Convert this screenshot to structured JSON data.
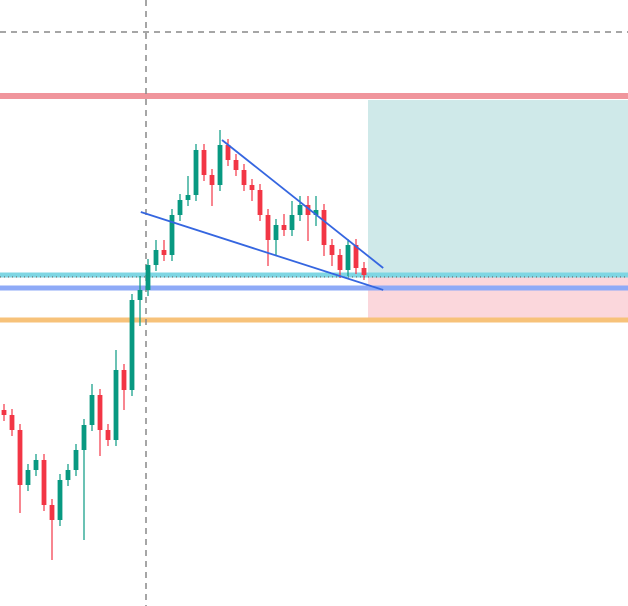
{
  "chart_data": {
    "type": "candlestick",
    "ylim": [
      0,
      606
    ],
    "xlim": [
      -0.5,
      78
    ],
    "up_color": "#089981",
    "down_color": "#f23645",
    "open": [
      196,
      191,
      176,
      121,
      136,
      146,
      101,
      86,
      126,
      136,
      156,
      181,
      211,
      176,
      166,
      236,
      216,
      306,
      316,
      341,
      356,
      351,
      391,
      406,
      411,
      456,
      431,
      421,
      461,
      446,
      436,
      421,
      416,
      391,
      366,
      381,
      376,
      391,
      401,
      391,
      396,
      361,
      351,
      336,
      361,
      338
    ],
    "high": [
      202,
      197,
      182,
      142,
      152,
      152,
      107,
      132,
      142,
      162,
      187,
      222,
      217,
      182,
      256,
      242,
      312,
      330,
      347,
      366,
      366,
      397,
      412,
      430,
      462,
      462,
      437,
      476,
      467,
      452,
      442,
      427,
      422,
      397,
      387,
      392,
      405,
      410,
      410,
      410,
      402,
      367,
      357,
      367,
      367,
      344
    ],
    "low": [
      185,
      170,
      93,
      115,
      130,
      95,
      46,
      80,
      120,
      130,
      66,
      175,
      150,
      160,
      160,
      196,
      210,
      280,
      310,
      335,
      345,
      345,
      385,
      400,
      405,
      425,
      400,
      415,
      440,
      430,
      415,
      405,
      385,
      340,
      350,
      370,
      370,
      385,
      365,
      380,
      350,
      340,
      328,
      330,
      332,
      326
    ],
    "close": [
      191,
      176,
      121,
      136,
      146,
      101,
      86,
      126,
      136,
      156,
      181,
      211,
      176,
      166,
      236,
      216,
      306,
      316,
      341,
      356,
      351,
      391,
      406,
      411,
      456,
      431,
      421,
      461,
      446,
      436,
      421,
      416,
      391,
      366,
      381,
      376,
      391,
      401,
      391,
      396,
      361,
      351,
      336,
      361,
      338,
      331
    ],
    "levels": [
      {
        "value": 510,
        "color": "#f0959c",
        "width": 6
      },
      {
        "value": 331,
        "color": "#7fd6e3",
        "width": 5
      },
      {
        "value": 318,
        "color": "#8eaaf7",
        "width": 5
      },
      {
        "value": 286,
        "color": "#f7c27a",
        "width": 5
      }
    ],
    "dotted_level": {
      "value": 329,
      "color": "#555555"
    },
    "trendlines": [
      {
        "color": "#3566e0",
        "x": [
          27.25,
          47.4
        ],
        "values": [
          466,
          338
        ]
      },
      {
        "color": "#3566e0",
        "x": [
          17.1,
          47.4
        ],
        "values": [
          394,
          316
        ]
      }
    ],
    "position": {
      "x_start": 45.5,
      "target": 506,
      "entry": 331,
      "stop": 286,
      "profit_color": "#cfe9e9",
      "loss_color": "#fbd7dc"
    },
    "crosshair": {
      "x": 17.75,
      "value": 574,
      "color": "#888888"
    }
  }
}
